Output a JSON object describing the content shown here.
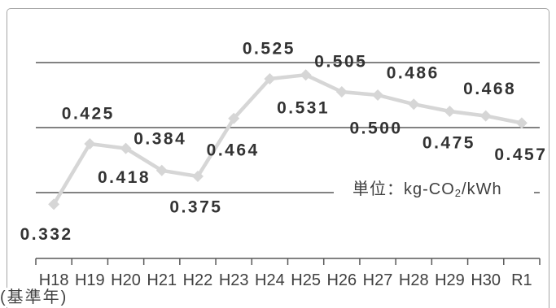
{
  "chart_data": {
    "type": "line",
    "categories": [
      "H18",
      "H19",
      "H20",
      "H21",
      "H22",
      "H23",
      "H24",
      "H25",
      "H26",
      "H27",
      "H28",
      "H29",
      "H30",
      "R1"
    ],
    "category_note": "(基準年)",
    "series": [
      {
        "values": [
          0.332,
          0.425,
          0.418,
          0.384,
          0.375,
          0.464,
          0.525,
          0.531,
          0.505,
          0.5,
          0.486,
          0.475,
          0.468,
          0.457
        ]
      }
    ],
    "data_labels": [
      "0.332",
      "0.425",
      "0.418",
      "0.384",
      "0.375",
      "0.464",
      "0.525",
      "0.531",
      "0.505",
      "0.500",
      "0.486",
      "0.475",
      "0.468",
      "0.457"
    ],
    "unit_label": {
      "prefix": "単位：kg-CO",
      "subscript": "2",
      "suffix": "/kWh"
    },
    "ylim": [
      0.25,
      0.6
    ],
    "y_gridlines": [
      0.35,
      0.45,
      0.55
    ],
    "grid": true,
    "legend": "none",
    "marker": "diamond",
    "colors": {
      "series": "#d6d6d6",
      "gridline": "#595959",
      "axis": "#595959",
      "data_label": "#333333",
      "tick_label": "#404040",
      "frame": "#a6a6a6"
    }
  }
}
